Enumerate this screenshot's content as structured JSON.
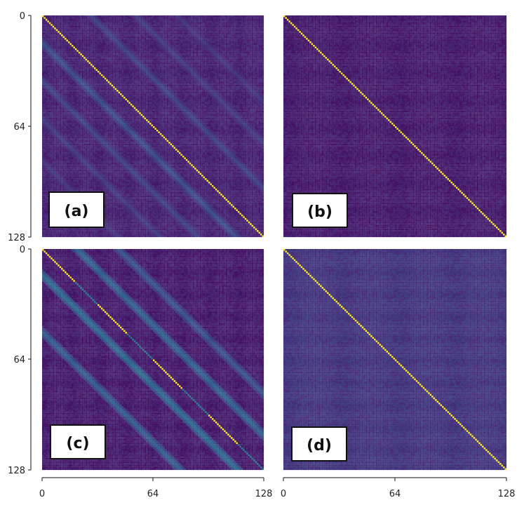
{
  "chart_data": [
    {
      "type": "heatmap",
      "panel_label": "(a)",
      "matrix_size": 128,
      "colormap": "viridis",
      "diagonal_value": 1.0,
      "background_value": 0.1,
      "off_diagonal_bands": [
        {
          "offset": -16,
          "value": 0.24
        },
        {
          "offset": -38,
          "value": 0.2
        },
        {
          "offset": -60,
          "value": 0.18
        },
        {
          "offset": -84,
          "value": 0.16
        },
        {
          "offset": 28,
          "value": 0.2
        },
        {
          "offset": 54,
          "value": 0.18
        },
        {
          "offset": 78,
          "value": 0.16
        }
      ],
      "xlim": [
        0,
        128
      ],
      "ylim": [
        128,
        0
      ]
    },
    {
      "type": "heatmap",
      "panel_label": "(b)",
      "matrix_size": 128,
      "colormap": "viridis",
      "diagonal_value": 1.0,
      "background_value": 0.08,
      "off_diagonal_bands": [
        {
          "offset": -20,
          "value": 0.05
        },
        {
          "offset": 24,
          "value": 0.05
        },
        {
          "offset": 50,
          "value": 0.04
        }
      ],
      "xlim": [
        0,
        128
      ],
      "ylim": [
        128,
        0
      ]
    },
    {
      "type": "heatmap",
      "panel_label": "(c)",
      "matrix_size": 128,
      "colormap": "viridis",
      "diagonal_value": 1.0,
      "background_value": 0.08,
      "off_diagonal_bands": [
        {
          "offset": -15,
          "value": 0.35
        },
        {
          "offset": -48,
          "value": 0.3
        },
        {
          "offset": 20,
          "value": 0.32
        },
        {
          "offset": 44,
          "value": 0.26
        }
      ],
      "bright_diagonal_segments": [
        [
          0,
          18
        ],
        [
          32,
          48
        ],
        [
          64,
          80
        ],
        [
          96,
          112
        ]
      ],
      "xlim": [
        0,
        128
      ],
      "ylim": [
        128,
        0
      ]
    },
    {
      "type": "heatmap",
      "panel_label": "(d)",
      "matrix_size": 128,
      "colormap": "viridis",
      "diagonal_value": 1.0,
      "background_value": 0.16,
      "off_diagonal_bands": [],
      "xlim": [
        0,
        128
      ],
      "ylim": [
        128,
        0
      ]
    }
  ],
  "axes": {
    "y_ticks": [
      "0",
      "64",
      "128"
    ],
    "x_ticks": [
      "0",
      "64",
      "128"
    ]
  }
}
